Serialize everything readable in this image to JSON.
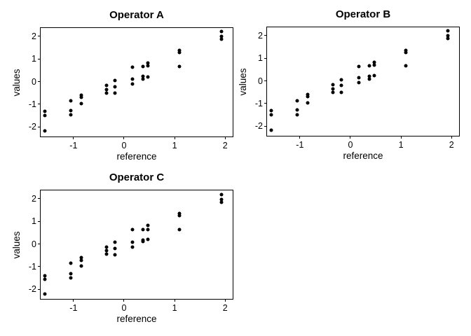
{
  "figure": {
    "background": "#ffffff",
    "point_color": "#000000",
    "axis_color": "#000000",
    "text_color": "#000000"
  },
  "chart_data": [
    {
      "type": "scatter",
      "title": "Operator A",
      "xlabel": "reference",
      "ylabel": "values",
      "xlim": [
        -1.65,
        2.15
      ],
      "ylim": [
        -2.42,
        2.36
      ],
      "xticks": [
        -1,
        0,
        1,
        2
      ],
      "yticks": [
        -2,
        -1,
        0,
        1,
        2
      ],
      "grid": false,
      "legend": null,
      "points": [
        [
          -1.56,
          -1.32
        ],
        [
          -1.56,
          -1.5
        ],
        [
          -1.56,
          -2.16
        ],
        [
          -1.06,
          -0.86
        ],
        [
          -1.06,
          -1.28
        ],
        [
          -1.06,
          -1.47
        ],
        [
          -0.85,
          -0.6
        ],
        [
          -0.85,
          -0.7
        ],
        [
          -0.85,
          -0.97
        ],
        [
          -0.34,
          -0.18
        ],
        [
          -0.34,
          -0.35
        ],
        [
          -0.34,
          -0.5
        ],
        [
          -0.18,
          0.06
        ],
        [
          -0.18,
          -0.22
        ],
        [
          -0.18,
          -0.5
        ],
        [
          0.16,
          0.64
        ],
        [
          0.16,
          0.12
        ],
        [
          0.16,
          -0.12
        ],
        [
          0.37,
          0.65
        ],
        [
          0.37,
          0.22
        ],
        [
          0.37,
          0.1
        ],
        [
          0.47,
          0.82
        ],
        [
          0.47,
          0.68
        ],
        [
          0.47,
          0.21
        ],
        [
          1.1,
          1.36
        ],
        [
          1.1,
          1.27
        ],
        [
          1.1,
          0.67
        ],
        [
          1.93,
          2.2
        ],
        [
          1.93,
          1.99
        ],
        [
          1.93,
          1.86
        ]
      ]
    },
    {
      "type": "scatter",
      "title": "Operator B",
      "xlabel": "reference",
      "ylabel": "values",
      "xlim": [
        -1.65,
        2.15
      ],
      "ylim": [
        -2.42,
        2.36
      ],
      "xticks": [
        -1,
        0,
        1,
        2
      ],
      "yticks": [
        -2,
        -1,
        0,
        1,
        2
      ],
      "grid": false,
      "legend": null,
      "points": [
        [
          -1.56,
          -1.32
        ],
        [
          -1.56,
          -1.51
        ],
        [
          -1.56,
          -2.18
        ],
        [
          -1.06,
          -0.87
        ],
        [
          -1.06,
          -1.28
        ],
        [
          -1.06,
          -1.48
        ],
        [
          -0.85,
          -0.59
        ],
        [
          -0.85,
          -0.7
        ],
        [
          -0.85,
          -0.96
        ],
        [
          -0.34,
          -0.18
        ],
        [
          -0.34,
          -0.35
        ],
        [
          -0.34,
          -0.51
        ],
        [
          -0.18,
          0.06
        ],
        [
          -0.18,
          -0.21
        ],
        [
          -0.18,
          -0.5
        ],
        [
          0.17,
          0.62
        ],
        [
          0.17,
          0.14
        ],
        [
          0.17,
          -0.08
        ],
        [
          0.38,
          0.65
        ],
        [
          0.38,
          0.21
        ],
        [
          0.38,
          0.09
        ],
        [
          0.47,
          0.81
        ],
        [
          0.47,
          0.68
        ],
        [
          0.47,
          0.22
        ],
        [
          1.1,
          1.35
        ],
        [
          1.1,
          1.26
        ],
        [
          1.1,
          0.67
        ],
        [
          1.93,
          2.2
        ],
        [
          1.93,
          2.0
        ],
        [
          1.93,
          1.87
        ]
      ]
    },
    {
      "type": "scatter",
      "title": "Operator C",
      "xlabel": "reference",
      "ylabel": "values",
      "xlim": [
        -1.65,
        2.15
      ],
      "ylim": [
        -2.42,
        2.36
      ],
      "xticks": [
        -1,
        0,
        1,
        2
      ],
      "yticks": [
        -2,
        -1,
        0,
        1,
        2
      ],
      "grid": false,
      "legend": null,
      "points": [
        [
          -1.56,
          -1.39
        ],
        [
          -1.56,
          -1.56
        ],
        [
          -1.56,
          -2.21
        ],
        [
          -1.06,
          -0.86
        ],
        [
          -1.06,
          -1.31
        ],
        [
          -1.06,
          -1.51
        ],
        [
          -0.85,
          -0.59
        ],
        [
          -0.85,
          -0.71
        ],
        [
          -0.85,
          -0.98
        ],
        [
          -0.34,
          -0.15
        ],
        [
          -0.34,
          -0.29
        ],
        [
          -0.34,
          -0.44
        ],
        [
          -0.18,
          0.07
        ],
        [
          -0.18,
          -0.2
        ],
        [
          -0.18,
          -0.48
        ],
        [
          0.16,
          0.63
        ],
        [
          0.16,
          0.09
        ],
        [
          0.16,
          -0.13
        ],
        [
          0.37,
          0.63
        ],
        [
          0.37,
          0.17
        ],
        [
          0.37,
          0.12
        ],
        [
          0.47,
          0.83
        ],
        [
          0.47,
          0.63
        ],
        [
          0.47,
          0.2
        ],
        [
          1.1,
          1.33
        ],
        [
          1.1,
          1.24
        ],
        [
          1.1,
          0.64
        ],
        [
          1.93,
          2.17
        ],
        [
          1.93,
          1.97
        ],
        [
          1.93,
          1.85
        ]
      ]
    }
  ]
}
